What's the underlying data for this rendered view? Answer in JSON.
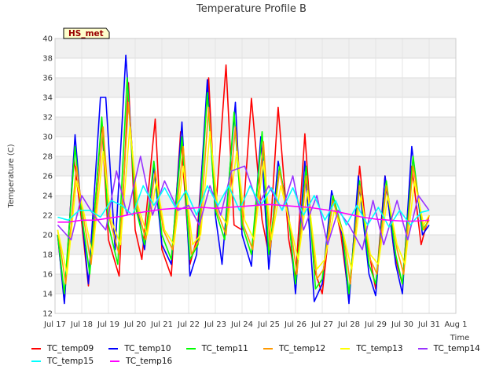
{
  "chart_data": {
    "type": "line",
    "title": "Temperature Profile B",
    "xlabel": "Time",
    "ylabel": "Temperature (C)",
    "badge": "HS_met",
    "ylim": [
      12,
      40
    ],
    "yticks": [
      12,
      14,
      16,
      18,
      20,
      22,
      24,
      26,
      28,
      30,
      32,
      34,
      36,
      38,
      40
    ],
    "xlim": [
      17,
      32
    ],
    "xticks": [
      {
        "v": 17,
        "label": "Jul 17"
      },
      {
        "v": 18,
        "label": "Jul 18"
      },
      {
        "v": 19,
        "label": "Jul 19"
      },
      {
        "v": 20,
        "label": "Jul 20"
      },
      {
        "v": 21,
        "label": "Jul 21"
      },
      {
        "v": 22,
        "label": "Jul 22"
      },
      {
        "v": 23,
        "label": "Jul 23"
      },
      {
        "v": 24,
        "label": "Jul 24"
      },
      {
        "v": 25,
        "label": "Jul 25"
      },
      {
        "v": 26,
        "label": "Jul 26"
      },
      {
        "v": 27,
        "label": "Jul 27"
      },
      {
        "v": 28,
        "label": "Jul 28"
      },
      {
        "v": 29,
        "label": "Jul 29"
      },
      {
        "v": 30,
        "label": "Jul 30"
      },
      {
        "v": 31,
        "label": "Jul 31"
      },
      {
        "v": 32,
        "label": "Aug 1"
      }
    ],
    "grid": true,
    "legend_position": "bottom",
    "series": [
      {
        "name": "TC_temp09",
        "color": "#ff0000",
        "x": [
          17.1,
          17.35,
          17.7,
          17.95,
          18.25,
          18.75,
          19.0,
          19.4,
          19.75,
          20.0,
          20.25,
          20.75,
          21.0,
          21.35,
          21.7,
          22.05,
          22.3,
          22.75,
          23.0,
          23.4,
          23.7,
          24.0,
          24.35,
          24.75,
          25.0,
          25.35,
          25.75,
          26.0,
          26.35,
          26.7,
          27.0,
          27.4,
          27.7,
          28.0,
          28.4,
          28.7,
          29.0,
          29.35,
          29.7,
          30.0,
          30.35,
          30.7,
          31.0
        ],
        "y": [
          20,
          13.2,
          28,
          22.5,
          14.8,
          31.5,
          19.5,
          15.8,
          35.5,
          20.5,
          17.5,
          31.8,
          18.5,
          15.8,
          30.5,
          17.0,
          19.5,
          36.0,
          22.0,
          37.3,
          21.0,
          20.5,
          33.9,
          21.5,
          18.0,
          33.0,
          19.5,
          15.5,
          30.3,
          16.5,
          14.0,
          24.0,
          20.0,
          13.5,
          27.0,
          19.0,
          14.5,
          26.0,
          18.0,
          15.0,
          27.0,
          19.0,
          22.0
        ]
      },
      {
        "name": "TC_temp10",
        "color": "#0000ff",
        "x": [
          17.1,
          17.35,
          17.75,
          18.0,
          18.25,
          18.7,
          18.9,
          19.25,
          19.65,
          20.0,
          20.35,
          20.7,
          21.0,
          21.35,
          21.75,
          22.05,
          22.3,
          22.7,
          23.0,
          23.25,
          23.75,
          24.0,
          24.35,
          24.7,
          25.0,
          25.35,
          25.75,
          26.0,
          26.35,
          26.7,
          27.0,
          27.35,
          27.75,
          28.0,
          28.35,
          28.75,
          29.0,
          29.35,
          29.75,
          30.0,
          30.35,
          30.75,
          31.0
        ],
        "y": [
          20,
          13.0,
          30.2,
          22.0,
          15.0,
          34.0,
          34.0,
          18.5,
          38.3,
          24.0,
          18.5,
          27.0,
          19.0,
          17.0,
          31.5,
          15.8,
          18.0,
          35.8,
          22.0,
          17.0,
          33.5,
          20.0,
          16.8,
          30.0,
          16.5,
          27.5,
          22.0,
          14.0,
          27.5,
          13.2,
          15.0,
          24.5,
          20.0,
          13.0,
          26.0,
          16.0,
          13.8,
          26.0,
          17.0,
          14.0,
          29.0,
          20.0,
          21.0
        ]
      },
      {
        "name": "TC_temp11",
        "color": "#00ff00",
        "x": [
          17.1,
          17.35,
          17.75,
          18.0,
          18.3,
          18.75,
          19.0,
          19.35,
          19.7,
          20.0,
          20.35,
          20.7,
          21.0,
          21.35,
          21.75,
          22.05,
          22.35,
          22.7,
          23.0,
          23.35,
          23.7,
          24.0,
          24.35,
          24.75,
          25.0,
          25.4,
          25.75,
          26.0,
          26.4,
          26.75,
          27.0,
          27.4,
          27.75,
          28.0,
          28.4,
          28.75,
          29.0,
          29.4,
          29.75,
          30.0,
          30.4,
          30.75,
          31.0
        ],
        "y": [
          20,
          14.0,
          29.0,
          22.0,
          16.0,
          32.0,
          21.0,
          17.0,
          36.0,
          23.0,
          19.0,
          27.5,
          20.0,
          17.5,
          30.0,
          17.5,
          19.0,
          34.5,
          22.5,
          19.5,
          32.5,
          21.0,
          18.0,
          30.5,
          18.0,
          27.0,
          21.5,
          15.0,
          27.0,
          14.5,
          15.5,
          24.0,
          20.5,
          14.0,
          25.5,
          17.0,
          15.0,
          25.5,
          18.0,
          15.0,
          28.0,
          20.5,
          21.5
        ]
      },
      {
        "name": "TC_temp12",
        "color": "#ff9900",
        "x": [
          17.1,
          17.4,
          17.8,
          18.05,
          18.35,
          18.8,
          19.05,
          19.4,
          19.75,
          20.05,
          20.4,
          20.75,
          21.05,
          21.4,
          21.8,
          22.1,
          22.4,
          22.75,
          23.05,
          23.4,
          23.75,
          24.05,
          24.4,
          24.8,
          25.05,
          25.4,
          25.8,
          26.05,
          26.4,
          26.8,
          27.05,
          27.4,
          27.8,
          28.05,
          28.4,
          28.8,
          29.05,
          29.4,
          29.8,
          30.05,
          30.4,
          30.8,
          31.0
        ],
        "y": [
          20.5,
          15.0,
          27.0,
          22.0,
          17.0,
          31.0,
          21.5,
          18.0,
          33.5,
          23.0,
          19.5,
          26.5,
          20.5,
          18.5,
          29.0,
          18.0,
          19.5,
          33.0,
          22.5,
          20.0,
          31.0,
          21.0,
          18.5,
          29.5,
          18.5,
          26.5,
          21.0,
          16.0,
          26.0,
          15.5,
          16.5,
          23.5,
          20.0,
          15.0,
          25.0,
          17.5,
          16.0,
          25.0,
          18.5,
          16.0,
          27.0,
          20.5,
          21.5
        ]
      },
      {
        "name": "TC_temp13",
        "color": "#ffff00",
        "x": [
          17.1,
          17.45,
          17.8,
          18.1,
          18.4,
          18.8,
          19.1,
          19.45,
          19.8,
          20.1,
          20.45,
          20.8,
          21.1,
          21.45,
          21.8,
          22.15,
          22.45,
          22.8,
          23.1,
          23.45,
          23.8,
          24.1,
          24.45,
          24.8,
          25.1,
          25.45,
          25.8,
          26.1,
          26.45,
          26.8,
          27.1,
          27.45,
          27.8,
          28.1,
          28.45,
          28.8,
          29.1,
          29.45,
          29.8,
          30.1,
          30.45,
          30.8,
          31.0
        ],
        "y": [
          20.5,
          16.0,
          25.5,
          22.0,
          18.0,
          28.5,
          21.5,
          19.0,
          31.0,
          23.0,
          20.0,
          25.5,
          20.5,
          19.0,
          27.0,
          19.0,
          20.0,
          30.5,
          22.5,
          21.0,
          28.5,
          21.5,
          19.5,
          27.5,
          19.5,
          25.0,
          21.0,
          17.5,
          24.5,
          16.5,
          17.5,
          22.5,
          20.0,
          16.5,
          24.0,
          18.0,
          17.0,
          24.0,
          19.0,
          17.0,
          25.5,
          21.0,
          22.0
        ]
      },
      {
        "name": "TC_temp14",
        "color": "#9933ff",
        "x": [
          17.1,
          17.6,
          18.0,
          18.45,
          18.9,
          19.3,
          19.7,
          20.2,
          20.65,
          21.1,
          21.6,
          22.0,
          22.4,
          22.8,
          23.2,
          23.6,
          24.1,
          24.6,
          25.0,
          25.5,
          25.9,
          26.3,
          26.8,
          27.2,
          27.6,
          28.0,
          28.5,
          28.9,
          29.3,
          29.8,
          30.2,
          30.6,
          31.0
        ],
        "y": [
          21.0,
          19.5,
          24.0,
          22.0,
          20.5,
          26.5,
          22.0,
          28.0,
          22.0,
          25.5,
          22.5,
          23.0,
          21.0,
          25.0,
          22.0,
          26.5,
          27.0,
          23.0,
          25.0,
          22.5,
          26.0,
          20.5,
          24.0,
          19.0,
          22.5,
          21.0,
          18.5,
          23.5,
          19.0,
          23.5,
          19.5,
          24.0,
          22.5
        ]
      },
      {
        "name": "TC_temp15",
        "color": "#00ffff",
        "x": [
          17.1,
          17.5,
          17.9,
          18.3,
          18.7,
          19.1,
          19.5,
          19.9,
          20.3,
          20.7,
          21.1,
          21.5,
          21.9,
          22.3,
          22.7,
          23.1,
          23.5,
          23.9,
          24.3,
          24.7,
          25.1,
          25.5,
          25.9,
          26.3,
          26.7,
          27.1,
          27.5,
          27.9,
          28.3,
          28.7,
          29.1,
          29.5,
          29.9,
          30.3,
          30.7,
          31.0
        ],
        "y": [
          21.8,
          21.5,
          22.5,
          22.5,
          21.8,
          23.5,
          23.0,
          22.0,
          25.0,
          23.0,
          24.8,
          22.8,
          24.5,
          22.0,
          25.0,
          23.0,
          25.0,
          22.5,
          25.0,
          23.0,
          24.8,
          22.5,
          24.8,
          22.0,
          24.0,
          21.5,
          23.5,
          21.0,
          23.0,
          21.0,
          22.8,
          20.8,
          22.5,
          21.0,
          22.3,
          22.5
        ]
      },
      {
        "name": "TC_temp16",
        "color": "#ff00ff",
        "x": [
          17.1,
          17.5,
          18.0,
          18.5,
          19.0,
          19.5,
          20.0,
          20.5,
          21.0,
          21.5,
          22.0,
          22.5,
          23.0,
          23.5,
          24.0,
          24.5,
          25.0,
          25.5,
          26.0,
          26.5,
          27.0,
          27.5,
          28.0,
          28.5,
          29.0,
          29.5,
          30.0,
          30.5,
          31.0
        ],
        "y": [
          21.3,
          21.3,
          21.5,
          21.5,
          21.7,
          21.9,
          22.2,
          22.4,
          22.6,
          22.7,
          22.7,
          22.8,
          22.7,
          22.8,
          22.9,
          23.0,
          23.1,
          23.0,
          22.9,
          22.8,
          22.6,
          22.4,
          22.1,
          21.8,
          21.6,
          21.5,
          21.4,
          21.4,
          21.5
        ]
      }
    ]
  }
}
